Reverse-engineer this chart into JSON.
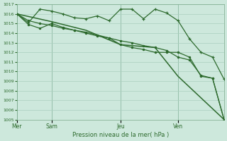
{
  "title": "Pression niveau de la mer( hPa )",
  "ylim": [
    1005,
    1017
  ],
  "yticks": [
    1005,
    1006,
    1007,
    1008,
    1009,
    1010,
    1011,
    1012,
    1013,
    1014,
    1015,
    1016,
    1017
  ],
  "background_color": "#cde8dc",
  "grid_color": "#aacfbe",
  "line_color": "#2d6a2d",
  "day_labels": [
    "Mer",
    "Sam",
    "Jeu",
    "Ven"
  ],
  "day_positions": [
    0,
    6,
    18,
    28
  ],
  "xlim": [
    0,
    36
  ],
  "line1_x": [
    0,
    2,
    4,
    6,
    8,
    10,
    12,
    14,
    16,
    18,
    20,
    22,
    24,
    26,
    28,
    30,
    32,
    34,
    36
  ],
  "line1_y": [
    1016.0,
    1015.1,
    1016.5,
    1016.3,
    1016.0,
    1015.6,
    1015.5,
    1015.8,
    1015.3,
    1016.5,
    1016.5,
    1015.5,
    1016.5,
    1016.1,
    1015.3,
    1013.4,
    1012.0,
    1011.5,
    1009.2
  ],
  "line2_x": [
    0,
    2,
    4,
    6,
    8,
    10,
    12,
    14,
    16,
    18,
    20,
    22,
    24,
    26,
    28,
    30,
    32,
    34,
    36
  ],
  "line2_y": [
    1016.0,
    1014.9,
    1014.5,
    1015.0,
    1014.6,
    1014.3,
    1014.0,
    1013.7,
    1013.5,
    1012.8,
    1012.5,
    1012.3,
    1012.0,
    1012.0,
    1012.0,
    1011.5,
    1009.5,
    1009.3,
    1005.0
  ],
  "line3_x": [
    0,
    6,
    12,
    18,
    24,
    28,
    36
  ],
  "line3_y": [
    1016.0,
    1015.2,
    1014.3,
    1012.8,
    1012.5,
    1009.5,
    1005.0
  ],
  "line4_x": [
    0,
    2,
    4,
    6,
    8,
    10,
    12,
    14,
    16,
    18,
    20,
    22,
    24,
    26,
    28,
    30,
    32,
    34,
    36
  ],
  "line4_y": [
    1016.0,
    1015.3,
    1015.0,
    1014.8,
    1014.5,
    1014.3,
    1014.1,
    1013.8,
    1013.5,
    1013.2,
    1013.0,
    1012.7,
    1012.5,
    1012.2,
    1011.5,
    1011.2,
    1009.6,
    1009.3,
    1005.0
  ]
}
